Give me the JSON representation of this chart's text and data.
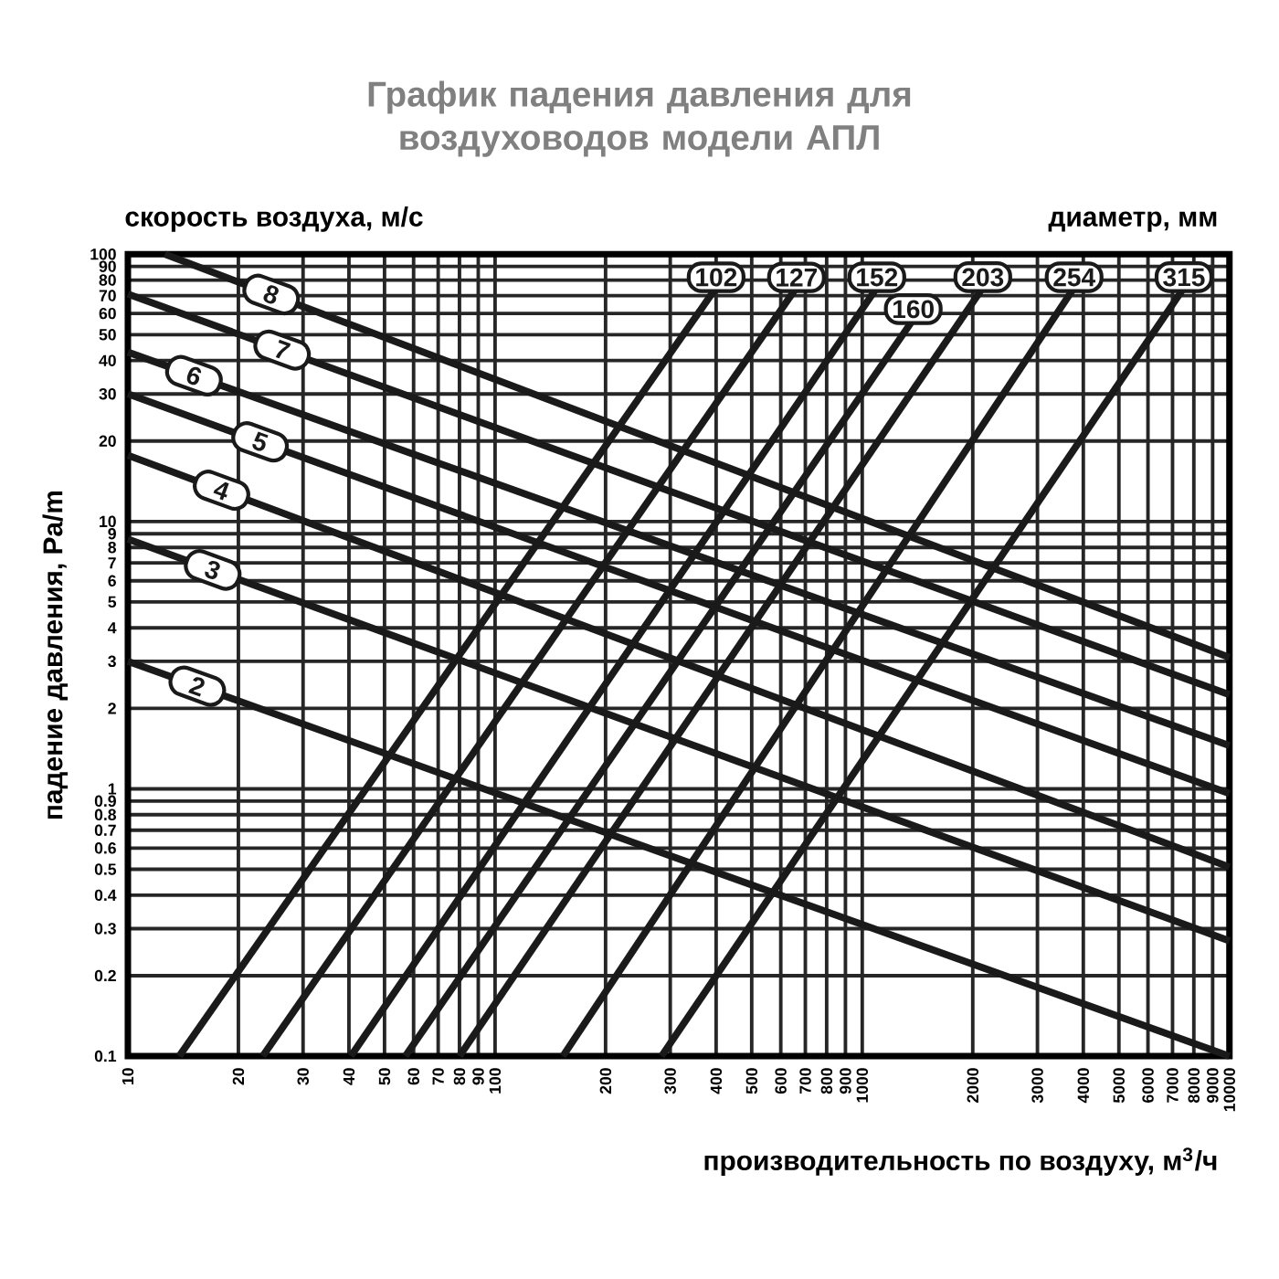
{
  "chart_data": {
    "type": "line",
    "title": "График падения давления для воздуховодов модели АПЛ",
    "xlabel": "производительность по воздуху, м$^{3}$/ч",
    "ylabel": "падение давления, Pa/m",
    "annotations": [
      "скорость воздуха, м/с",
      "диаметр, мм"
    ],
    "log": "xy",
    "grid": true,
    "legend": "top",
    "marker": "none",
    "line_style": "solid",
    "xlim": [
      10,
      10000
    ],
    "ylim": [
      0.1,
      100
    ],
    "xticks": [
      10,
      20,
      30,
      40,
      50,
      60,
      70,
      80,
      90,
      100,
      200,
      300,
      400,
      500,
      600,
      700,
      800,
      900,
      1000,
      2000,
      3000,
      4000,
      5000,
      6000,
      7000,
      8000,
      9000,
      10000
    ],
    "yticks": [
      0.1,
      0.2,
      0.3,
      0.4,
      0.5,
      0.6,
      0.7,
      0.8,
      0.9,
      1,
      2,
      3,
      4,
      5,
      6,
      7,
      8,
      9,
      10,
      20,
      30,
      40,
      50,
      60,
      70,
      80,
      90,
      100
    ],
    "series": [
      {
        "name": "8",
        "color": "#1a1a1a",
        "x": [
          12.6,
          10000
        ],
        "values": [
          100,
          3.1
        ]
      },
      {
        "name": "7",
        "color": "#1a1a1a",
        "x": [
          10,
          10000
        ],
        "values": [
          71,
          2.25
        ]
      },
      {
        "name": "6",
        "color": "#1a1a1a",
        "x": [
          10,
          10000
        ],
        "values": [
          43,
          1.45
        ]
      },
      {
        "name": "5",
        "color": "#1a1a1a",
        "x": [
          10,
          10000
        ],
        "values": [
          30,
          0.96
        ]
      },
      {
        "name": "4",
        "color": "#1a1a1a",
        "x": [
          10,
          10000
        ],
        "values": [
          17.7,
          0.51
        ]
      },
      {
        "name": "3",
        "color": "#1a1a1a",
        "x": [
          10,
          10000
        ],
        "values": [
          8.6,
          0.27
        ]
      },
      {
        "name": "2",
        "color": "#1a1a1a",
        "x": [
          10,
          10000
        ],
        "values": [
          3.0,
          0.1
        ]
      },
      {
        "name": "102",
        "color": "#1a1a1a",
        "x": [
          13.8,
          400
        ],
        "values": [
          0.1,
          75
        ]
      },
      {
        "name": "127",
        "color": "#1a1a1a",
        "x": [
          23.3,
          662
        ],
        "values": [
          0.1,
          75
        ]
      },
      {
        "name": "152",
        "color": "#1a1a1a",
        "x": [
          40.5,
          1096
        ],
        "values": [
          0.1,
          75
        ]
      },
      {
        "name": "160",
        "color": "#1a1a1a",
        "x": [
          57,
          1377
        ],
        "values": [
          0.1,
          57
        ]
      },
      {
        "name": "203",
        "color": "#1a1a1a",
        "x": [
          80,
          2130
        ],
        "values": [
          0.1,
          75
        ]
      },
      {
        "name": "254",
        "color": "#1a1a1a",
        "x": [
          153,
          3776
        ],
        "values": [
          0.1,
          75
        ]
      },
      {
        "name": "315",
        "color": "#1a1a1a",
        "x": [
          284,
          7520
        ],
        "values": [
          0.1,
          75
        ]
      }
    ]
  }
}
